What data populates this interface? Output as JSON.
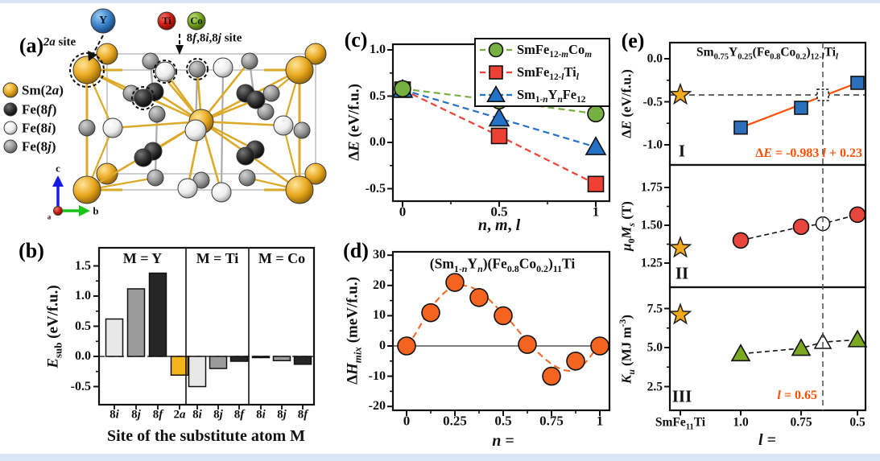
{
  "figure": {
    "margin_color": "#d9e7f4",
    "background": "#ffffff"
  },
  "panel_a": {
    "tag": "(a)",
    "substitute_atoms": [
      {
        "label": "Y",
        "color": "#3b82c9"
      },
      {
        "label": "Ti",
        "color": "#cd1c10"
      },
      {
        "label": "Co",
        "color": "#73a51f"
      }
    ],
    "site_label_2a": "*2a* site",
    "site_label_8": "8*f*,8*i*,8*j* site",
    "legend": [
      {
        "label": "Sm(2*a*)",
        "color": "#e9a81f"
      },
      {
        "label": "Fe(8*f*)",
        "color": "#303030"
      },
      {
        "label": "Fe(8*i*)",
        "color": "#ececec"
      },
      {
        "label": "Fe(8*j*)",
        "color": "#989898"
      }
    ],
    "axis_c": "c",
    "axis_b": "b",
    "axis_a": "a"
  },
  "chart_data": [
    {
      "id": "panel-b",
      "tag": "(b)",
      "type": "bar",
      "ylabel": "*E*_{sub} (eV/f.u.)",
      "xlabel": "Site of the substitute atom M",
      "yticks": [
        "1.5",
        "1.0",
        "0.5",
        "0.0",
        "-0.5"
      ],
      "ylim": [
        -0.8,
        1.8
      ],
      "bar_colors": [
        "#e8e8e8",
        "#9b9b9b",
        "#262626",
        "#f6b41c"
      ],
      "groups": [
        {
          "label": "M = Y",
          "categories": [
            "8*i*",
            "8*j*",
            "8*f*",
            "2*a*"
          ],
          "values": [
            0.62,
            1.12,
            1.38,
            -0.31
          ]
        },
        {
          "label": "M = Ti",
          "categories": [
            "8*i*",
            "8*j*",
            "8*f*"
          ],
          "values": [
            -0.5,
            -0.2,
            -0.08
          ]
        },
        {
          "label": "M = Co",
          "categories": [
            "8*i*",
            "8*j*",
            "8*f*"
          ],
          "values": [
            -0.02,
            -0.07,
            -0.13
          ]
        }
      ]
    },
    {
      "id": "panel-c",
      "tag": "(c)",
      "type": "scatter-line",
      "ylabel": "Δ*E* (eV/f.u.)",
      "xlabel": "*n*, *m*, *l*",
      "yticks": [
        "1.0",
        "0.5",
        "0.0",
        "-0.5"
      ],
      "xticks": [
        "0",
        "0.5",
        "1"
      ],
      "x": [
        0,
        0.5,
        1
      ],
      "series": [
        {
          "name": "SmFe_{12-*m*}Co_{*m*}",
          "marker": "circle",
          "color": "#76b041",
          "values": [
            0.58,
            0.45,
            0.31
          ]
        },
        {
          "name": "SmFe_{12-*l*}Ti_{*l*}",
          "marker": "square",
          "color": "#ee4035",
          "values": [
            0.57,
            0.07,
            -0.45
          ]
        },
        {
          "name": "Sm_{1-*n*}Y_{*n*}Fe_{12}",
          "marker": "triangle",
          "color": "#2471c8",
          "values": [
            0.57,
            0.26,
            -0.05
          ]
        }
      ],
      "legend_position": "top-right"
    },
    {
      "id": "panel-d",
      "tag": "(d)",
      "type": "scatter",
      "title": "(Sm_{1-*n*}Y_{*n*})(Fe_{0.8}Co_{0.2})_{11}Ti",
      "ylabel": "Δ*H*_{*mix*} (meV/f.u.)",
      "xlabel": "*n* =",
      "yticks": [
        "30",
        "20",
        "10",
        "0",
        "-10",
        "-20"
      ],
      "xticks": [
        "0",
        "0.25",
        "0.5",
        "0.75",
        "1"
      ],
      "color": "#f4641e",
      "x": [
        0,
        0.125,
        0.25,
        0.375,
        0.5,
        0.625,
        0.75,
        0.875,
        1
      ],
      "values": [
        0,
        11,
        21,
        16,
        10,
        0.5,
        -10,
        -5,
        0
      ]
    },
    {
      "id": "panel-e",
      "tag": "(e)",
      "type": "multi-panel-scatter",
      "title": "Sm_{0.75}Y_{0.25}(Fe_{0.8}Co_{0.2})_{12-*l*}Ti_{*l*}",
      "xlabel": "*l* =",
      "xticklabels": [
        "SmFe_{11}Ti",
        "1.0",
        "0.75",
        "0.5"
      ],
      "l_values": [
        1.0,
        0.75,
        0.5
      ],
      "dashed_line_l": 0.65,
      "panels": [
        {
          "numeral": "I",
          "ylabel": "Δ*E* (eV/f.u.)",
          "yticks": [
            "0.0",
            "-0.5",
            "-1.0"
          ],
          "marker": "square",
          "color": "#2c6fbb",
          "reference_star": -0.42,
          "values": [
            -0.8,
            -0.57,
            -0.28
          ],
          "open_value": -0.42,
          "annotation": "Δ*E* = -0.983 *l* + 0.23",
          "annotation_color": "#fe5000"
        },
        {
          "numeral": "II",
          "ylabel": "*μ*_{0}*M*_{*s*} (T)",
          "yticks": [
            "1.75",
            "1.50",
            "1.25"
          ],
          "marker": "circle",
          "color": "#e8453c",
          "reference_star": 1.35,
          "values": [
            1.4,
            1.49,
            1.57
          ],
          "open_value": 1.51
        },
        {
          "numeral": "III",
          "ylabel": "*K*_{*u*} (MJ m^{-3})",
          "yticks": [
            "7.5",
            "5.0",
            "2.5"
          ],
          "marker": "triangle",
          "color": "#7aa821",
          "reference_star": 7.1,
          "values": [
            4.6,
            4.95,
            5.5
          ],
          "open_value": 5.35,
          "annotation": "*l* = 0.65",
          "annotation_color": "#fe5000"
        }
      ]
    }
  ]
}
